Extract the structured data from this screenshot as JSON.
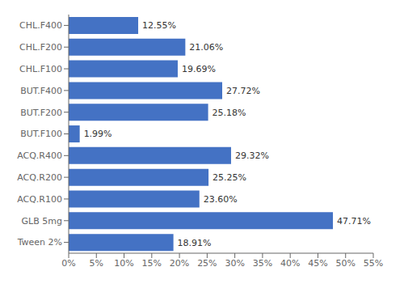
{
  "chart_data": {
    "type": "bar",
    "orientation": "horizontal",
    "categories": [
      "CHL.F400",
      "CHL.F200",
      "CHL.F100",
      "BUT.F400",
      "BUT.F200",
      "BUT.F100",
      "ACQ.R400",
      "ACQ.R200",
      "ACQ.R100",
      "GLB 5mg",
      "Tween 2%"
    ],
    "values": [
      12.55,
      21.06,
      19.69,
      27.72,
      25.18,
      1.99,
      29.32,
      25.25,
      23.6,
      47.71,
      18.91
    ],
    "value_labels": [
      "12.55%",
      "21.06%",
      "19.69%",
      "27.72%",
      "25.18%",
      "1.99%",
      "29.32%",
      "25.25%",
      "23.60%",
      "47.71%",
      "18.91%"
    ],
    "data_labels": true,
    "color": "#4472C4",
    "xlim": [
      0,
      55
    ],
    "xticks": [
      {
        "value": 0,
        "label": "0%"
      },
      {
        "value": 5,
        "label": "5%"
      },
      {
        "value": 10,
        "label": "10%"
      },
      {
        "value": 15,
        "label": "15%"
      },
      {
        "value": 20,
        "label": "20%"
      },
      {
        "value": 25,
        "label": "25%"
      },
      {
        "value": 30,
        "label": "30%"
      },
      {
        "value": 35,
        "label": "35%"
      },
      {
        "value": 40,
        "label": "40%"
      },
      {
        "value": 45,
        "label": "45%"
      },
      {
        "value": 50,
        "label": "50%"
      },
      {
        "value": 55,
        "label": "55%"
      }
    ],
    "grid": false
  }
}
